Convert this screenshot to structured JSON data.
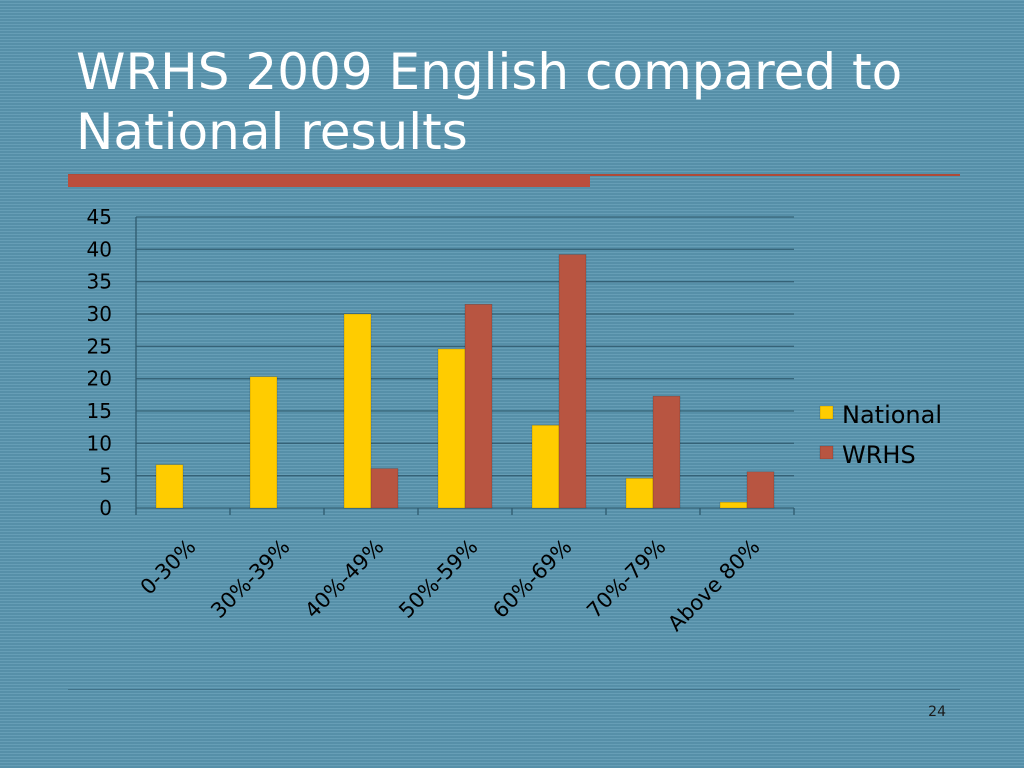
{
  "slide": {
    "title": "WRHS 2009 English compared to National results",
    "number": "24"
  },
  "colors": {
    "background": "#5b97b1",
    "accent_rule": "#bb4e3c",
    "national": "#ffcc00",
    "wrhs": "#b85541"
  },
  "chart_data": {
    "type": "bar",
    "title": "",
    "xlabel": "",
    "ylabel": "",
    "categories": [
      "0-30%",
      "30%-39%",
      "40%-49%",
      "50%-59%",
      "60%-69%",
      "70%-79%",
      "Above 80%"
    ],
    "series": [
      {
        "name": "National",
        "color": "#ffcc00",
        "values": [
          6.7,
          20.3,
          30.0,
          24.6,
          12.8,
          4.6,
          0.9
        ]
      },
      {
        "name": "WRHS",
        "color": "#b85541",
        "values": [
          null,
          null,
          6.1,
          31.5,
          39.2,
          17.3,
          5.6
        ]
      }
    ],
    "ylim": [
      0,
      45
    ],
    "yticks": [
      0,
      5,
      10,
      15,
      20,
      25,
      30,
      35,
      40,
      45
    ],
    "grid": true,
    "legend_position": "right"
  }
}
